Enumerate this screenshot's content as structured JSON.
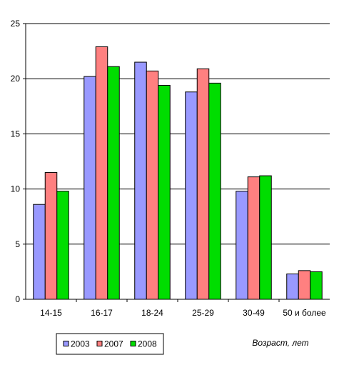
{
  "chart_data": {
    "type": "bar",
    "categories": [
      "14-15",
      "16-17",
      "18-24",
      "25-29",
      "30-49",
      "50 и более"
    ],
    "series": [
      {
        "name": "2003",
        "color": "#9999ff",
        "values": [
          8.6,
          20.2,
          21.5,
          18.8,
          9.8,
          2.3
        ]
      },
      {
        "name": "2007",
        "color": "#ff8080",
        "values": [
          11.5,
          22.9,
          20.7,
          20.9,
          11.1,
          2.6
        ]
      },
      {
        "name": "2008",
        "color": "#00dd00",
        "values": [
          9.8,
          21.1,
          19.4,
          19.6,
          11.2,
          2.5
        ]
      }
    ],
    "xlabel": "Возраст, лет",
    "ylabel": "",
    "ylim": [
      0,
      25
    ],
    "yticks": [
      0,
      5,
      10,
      15,
      20,
      25
    ],
    "grid": true,
    "legend_position": "bottom-left"
  }
}
